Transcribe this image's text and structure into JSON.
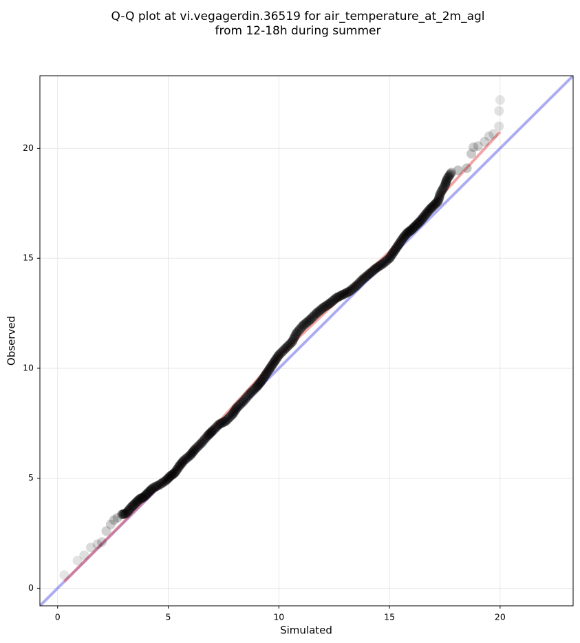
{
  "chart_data": {
    "type": "scatter",
    "title": "Q-Q plot at vi.vegagerdin.36519 for air_temperature_at_2m_agl",
    "subtitle": "from 12-18h during summer",
    "xlabel": "Simulated",
    "ylabel": "Observed",
    "xlim": [
      -0.8,
      23.3
    ],
    "ylim": [
      -0.8,
      23.3
    ],
    "xticks": [
      0,
      5,
      10,
      15,
      20
    ],
    "yticks": [
      0,
      5,
      10,
      15,
      20
    ],
    "grid": true,
    "legend": "none",
    "colors": {
      "points": "#000000",
      "fit_line": "#e85a5a",
      "identity_line": "#5a5ae8",
      "grid": "#e6e6e6"
    },
    "series": [
      {
        "kind": "quantile_points",
        "points": [
          [
            0.3,
            0.6
          ],
          [
            0.9,
            1.25
          ],
          [
            1.2,
            1.5
          ],
          [
            1.5,
            1.85
          ],
          [
            1.8,
            2.0
          ],
          [
            2.0,
            2.1
          ],
          [
            2.2,
            2.6
          ],
          [
            2.4,
            2.9
          ],
          [
            2.55,
            3.1
          ],
          [
            2.7,
            3.2
          ],
          [
            2.9,
            3.35
          ],
          [
            3.1,
            3.4
          ],
          [
            3.3,
            3.65
          ],
          [
            3.5,
            3.85
          ],
          [
            3.7,
            4.05
          ],
          [
            3.9,
            4.15
          ],
          [
            4.1,
            4.35
          ],
          [
            4.3,
            4.55
          ],
          [
            4.6,
            4.7
          ],
          [
            4.9,
            4.9
          ],
          [
            5.1,
            5.1
          ],
          [
            5.3,
            5.25
          ],
          [
            5.5,
            5.55
          ],
          [
            5.7,
            5.8
          ],
          [
            6.0,
            6.05
          ],
          [
            6.2,
            6.3
          ],
          [
            6.5,
            6.6
          ],
          [
            6.8,
            6.95
          ],
          [
            7.0,
            7.15
          ],
          [
            7.3,
            7.45
          ],
          [
            7.6,
            7.6
          ],
          [
            7.9,
            7.9
          ],
          [
            8.1,
            8.2
          ],
          [
            8.4,
            8.5
          ],
          [
            8.7,
            8.85
          ],
          [
            9.0,
            9.15
          ],
          [
            9.2,
            9.4
          ],
          [
            9.4,
            9.7
          ],
          [
            9.6,
            10.0
          ],
          [
            9.8,
            10.3
          ],
          [
            10.0,
            10.6
          ],
          [
            10.3,
            10.9
          ],
          [
            10.6,
            11.2
          ],
          [
            10.8,
            11.6
          ],
          [
            11.1,
            11.95
          ],
          [
            11.4,
            12.2
          ],
          [
            11.7,
            12.5
          ],
          [
            12.0,
            12.75
          ],
          [
            12.3,
            12.95
          ],
          [
            12.6,
            13.2
          ],
          [
            12.9,
            13.35
          ],
          [
            13.2,
            13.5
          ],
          [
            13.5,
            13.75
          ],
          [
            13.8,
            14.05
          ],
          [
            14.1,
            14.3
          ],
          [
            14.4,
            14.55
          ],
          [
            14.7,
            14.75
          ],
          [
            15.0,
            15.0
          ],
          [
            15.2,
            15.3
          ],
          [
            15.4,
            15.6
          ],
          [
            15.6,
            15.9
          ],
          [
            15.8,
            16.15
          ],
          [
            16.0,
            16.3
          ],
          [
            16.2,
            16.5
          ],
          [
            16.4,
            16.7
          ],
          [
            16.6,
            16.95
          ],
          [
            16.8,
            17.2
          ],
          [
            17.0,
            17.4
          ],
          [
            17.2,
            17.6
          ],
          [
            17.3,
            17.95
          ],
          [
            17.5,
            18.3
          ],
          [
            17.6,
            18.6
          ],
          [
            17.8,
            18.9
          ],
          [
            18.1,
            19.0
          ],
          [
            18.5,
            19.1
          ],
          [
            18.7,
            19.75
          ],
          [
            18.8,
            20.05
          ],
          [
            19.0,
            20.1
          ],
          [
            19.3,
            20.3
          ],
          [
            19.5,
            20.55
          ],
          [
            19.7,
            20.65
          ],
          [
            19.95,
            21.0
          ],
          [
            19.95,
            21.7
          ],
          [
            20.0,
            22.2
          ]
        ]
      },
      {
        "kind": "fit_line",
        "points": [
          [
            0.3,
            0.3
          ],
          [
            5.0,
            5.05
          ],
          [
            10.0,
            10.55
          ],
          [
            15.0,
            15.3
          ],
          [
            20.0,
            20.75
          ]
        ]
      },
      {
        "kind": "identity_line",
        "points": [
          [
            -0.8,
            -0.8
          ],
          [
            23.3,
            23.3
          ]
        ]
      }
    ]
  }
}
